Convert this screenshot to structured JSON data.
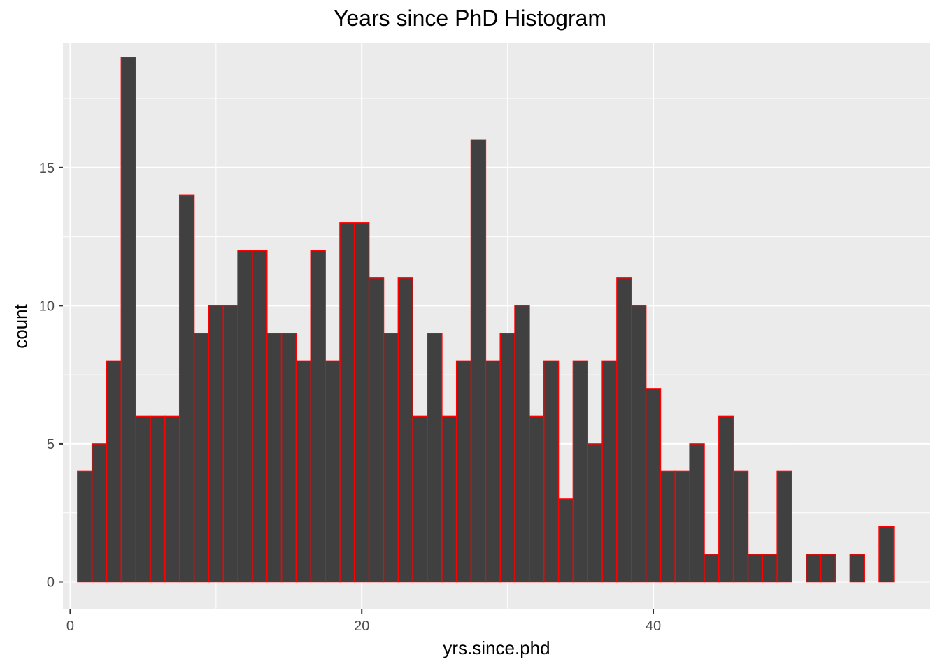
{
  "chart_data": {
    "type": "bar",
    "title": "Years since PhD Histogram",
    "xlabel": "yrs.since.phd",
    "ylabel": "count",
    "x_ticks": [
      0,
      20,
      40
    ],
    "y_ticks": [
      0,
      5,
      10,
      15
    ],
    "xlim": [
      -0.5,
      59
    ],
    "ylim": [
      -1,
      19.5
    ],
    "bin_width": 1,
    "bin_start": 0.5,
    "bin_centers": [
      1,
      2,
      3,
      4,
      5,
      6,
      7,
      8,
      9,
      10,
      11,
      12,
      13,
      14,
      15,
      16,
      17,
      18,
      19,
      20,
      21,
      22,
      23,
      24,
      25,
      26,
      27,
      28,
      29,
      30,
      31,
      32,
      33,
      34,
      35,
      36,
      37,
      38,
      39,
      40,
      41,
      42,
      43,
      44,
      45,
      46,
      47,
      48,
      49,
      50,
      51,
      52,
      53,
      54,
      55,
      56
    ],
    "values": [
      4,
      5,
      8,
      19,
      6,
      6,
      6,
      14,
      9,
      10,
      10,
      12,
      12,
      9,
      9,
      8,
      12,
      8,
      13,
      13,
      11,
      9,
      11,
      6,
      9,
      6,
      8,
      16,
      8,
      9,
      10,
      6,
      8,
      3,
      8,
      5,
      8,
      11,
      10,
      7,
      4,
      4,
      5,
      1,
      6,
      4,
      1,
      1,
      4,
      0,
      1,
      1,
      0,
      1,
      0,
      2
    ],
    "bar_fill": "#404040",
    "bar_outline": "#ff0000",
    "panel_background": "#ebebeb",
    "grid": true,
    "grid_color": "#ffffff"
  }
}
